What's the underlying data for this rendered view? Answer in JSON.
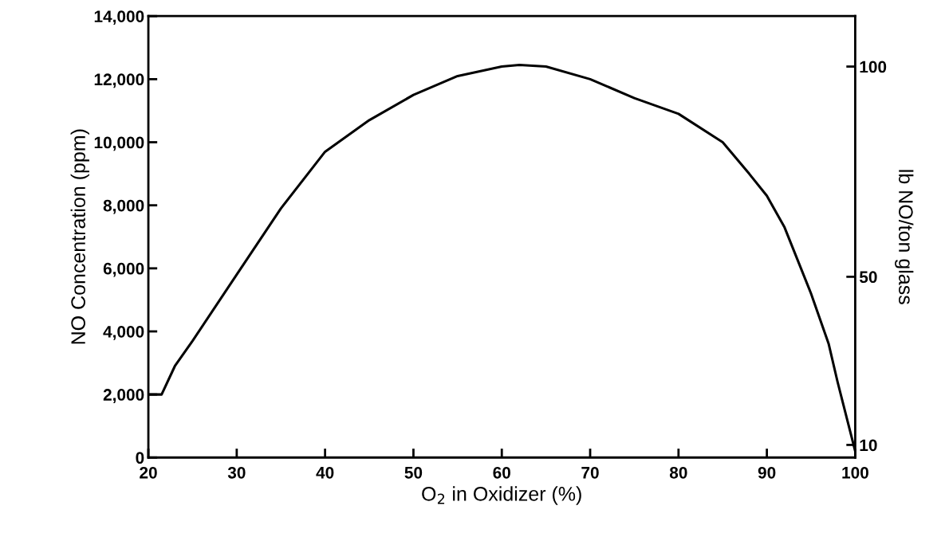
{
  "chart_data": {
    "type": "line",
    "xlabel": "O$_{2}$ in Oxidizer (%)",
    "ylabel": "NO Concentration (ppm)",
    "y2label": "lb NO/ton glass",
    "x": [
      20,
      21.5,
      23,
      25,
      30,
      35,
      40,
      45,
      50,
      55,
      60,
      62,
      65,
      70,
      75,
      80,
      85,
      88,
      90,
      92,
      95,
      97,
      98,
      100
    ],
    "series": [
      {
        "color": "#000000",
        "values": [
          2000,
          2000,
          2900,
          3700,
          5800,
          7900,
          9700,
          10700,
          11500,
          12100,
          12400,
          12450,
          12400,
          12000,
          11400,
          10900,
          10000,
          9000,
          8300,
          7300,
          5200,
          3600,
          2400,
          200
        ]
      }
    ],
    "xlim": [
      20,
      100
    ],
    "xticks": [
      20,
      30,
      40,
      50,
      60,
      70,
      80,
      90,
      100
    ],
    "ylim": [
      0,
      14000
    ],
    "yticks": [
      {
        "value": 0,
        "label": "0"
      },
      {
        "value": 2000,
        "label": "2,000"
      },
      {
        "value": 4000,
        "label": "4,000"
      },
      {
        "value": 6000,
        "label": "6,000"
      },
      {
        "value": 8000,
        "label": "8,000"
      },
      {
        "value": 10000,
        "label": "10,000"
      },
      {
        "value": 12000,
        "label": "12,000"
      },
      {
        "value": 14000,
        "label": "14,000"
      }
    ],
    "y2lim": [
      7,
      112
    ],
    "y2ticks": [
      10,
      50,
      100
    ],
    "grid": false,
    "marker": "none",
    "line_style": "solid"
  }
}
